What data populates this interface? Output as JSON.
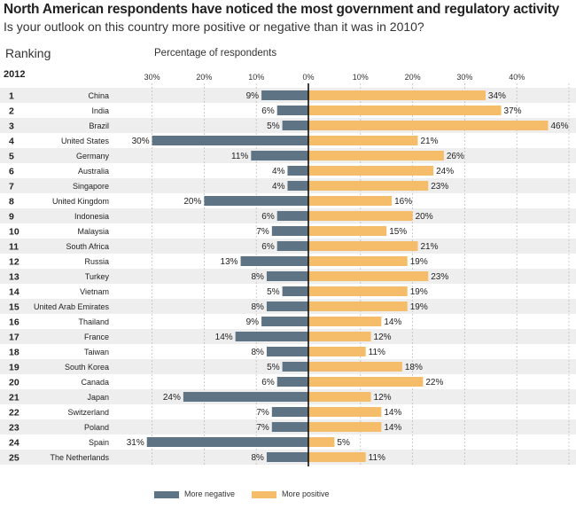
{
  "title": "North American respondents have noticed the most government and regulatory activity",
  "subtitle": "Is your outlook on this country more positive or negative than it was in 2010?",
  "ranking_label": "Ranking",
  "year_label": "2012",
  "axis_label": "Percentage of respondents",
  "colors": {
    "negative": "#5e7485",
    "positive": "#f5bd69",
    "zero_line": "#111111",
    "stripe": "#eeeeee"
  },
  "chart_data": {
    "type": "bar",
    "title": "North American respondents have noticed the most government and regulatory activity",
    "subtitle": "Is your outlook on this country more positive or negative than it was in 2010?",
    "xlabel": "Percentage of respondents",
    "xlim": [
      -30,
      50
    ],
    "ticks": [
      "30%",
      "20%",
      "10%",
      "0%",
      "10%",
      "20%",
      "30%",
      "40%"
    ],
    "tick_values": [
      -30,
      -20,
      -10,
      0,
      10,
      20,
      30,
      40
    ],
    "ranks": [
      1,
      2,
      3,
      4,
      5,
      6,
      7,
      8,
      9,
      10,
      11,
      12,
      13,
      14,
      15,
      16,
      17,
      18,
      19,
      20,
      21,
      22,
      23,
      24,
      25
    ],
    "categories": [
      "China",
      "India",
      "Brazil",
      "United States",
      "Germany",
      "Australia",
      "Singapore",
      "United Kingdom",
      "Indonesia",
      "Malaysia",
      "South Africa",
      "Russia",
      "Turkey",
      "Vietnam",
      "United Arab Emirates",
      "Thailand",
      "France",
      "Taiwan",
      "South Korea",
      "Canada",
      "Japan",
      "Switzerland",
      "Poland",
      "Spain",
      "The Netherlands"
    ],
    "series": [
      {
        "name": "More negative",
        "values": [
          9,
          6,
          5,
          30,
          11,
          4,
          4,
          20,
          6,
          7,
          6,
          13,
          8,
          5,
          8,
          9,
          14,
          8,
          5,
          6,
          24,
          7,
          7,
          31,
          8
        ]
      },
      {
        "name": "More positive",
        "values": [
          34,
          37,
          46,
          21,
          26,
          24,
          23,
          16,
          20,
          15,
          21,
          19,
          23,
          19,
          19,
          14,
          12,
          11,
          18,
          22,
          12,
          14,
          14,
          5,
          11
        ]
      }
    ],
    "grid": true,
    "legend_position": "bottom"
  }
}
